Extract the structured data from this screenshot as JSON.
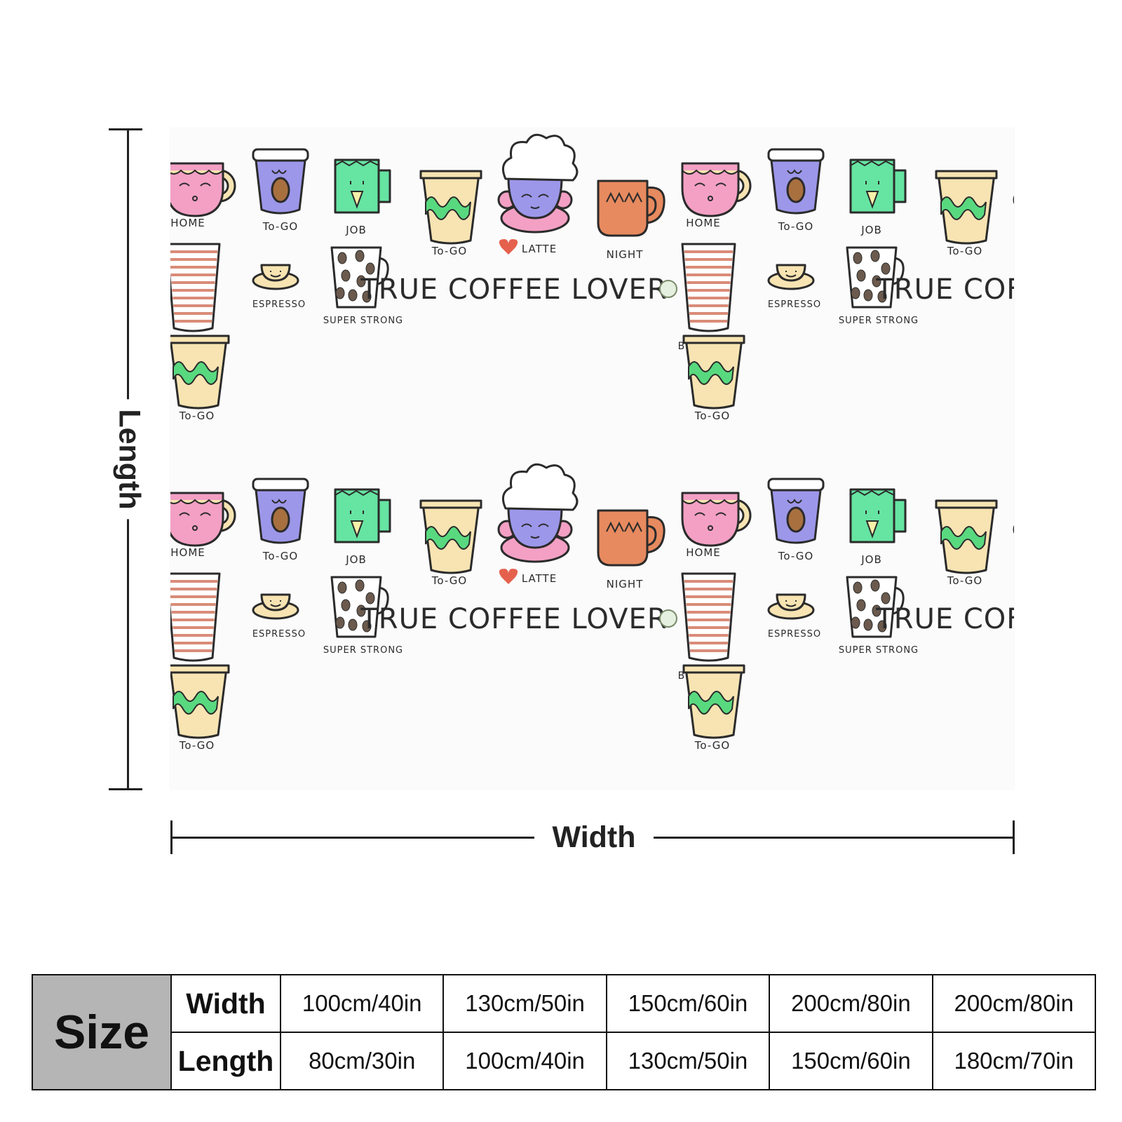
{
  "blanket": {
    "pattern_words": {
      "title": "TRUE COFFEE LOVER",
      "home": "HOME",
      "togo": "To-GO",
      "job": "JOB",
      "latte": "LATTE",
      "night": "NIGHT",
      "breaktime": "BREAK-TIME",
      "espresso": "ESPRESSO",
      "superstrong": "SUPER STRONG"
    },
    "colors": {
      "pink": "#f3a0c4",
      "purple": "#9d97ea",
      "green": "#66e4a2",
      "cream": "#f7e4b2",
      "orange": "#e78a5f",
      "stripe": "#d98c78",
      "lime": "#59d97f",
      "latte_heart": "#e5614d"
    }
  },
  "dimensions": {
    "length_label": "Length",
    "width_label": "Width"
  },
  "size_table": {
    "header": "Size",
    "width_label": "Width",
    "length_label": "Length",
    "widths": [
      "100cm/40in",
      "130cm/50in",
      "150cm/60in",
      "200cm/80in",
      "200cm/80in"
    ],
    "lengths": [
      "80cm/30in",
      "100cm/40in",
      "130cm/50in",
      "150cm/60in",
      "180cm/70in"
    ]
  }
}
